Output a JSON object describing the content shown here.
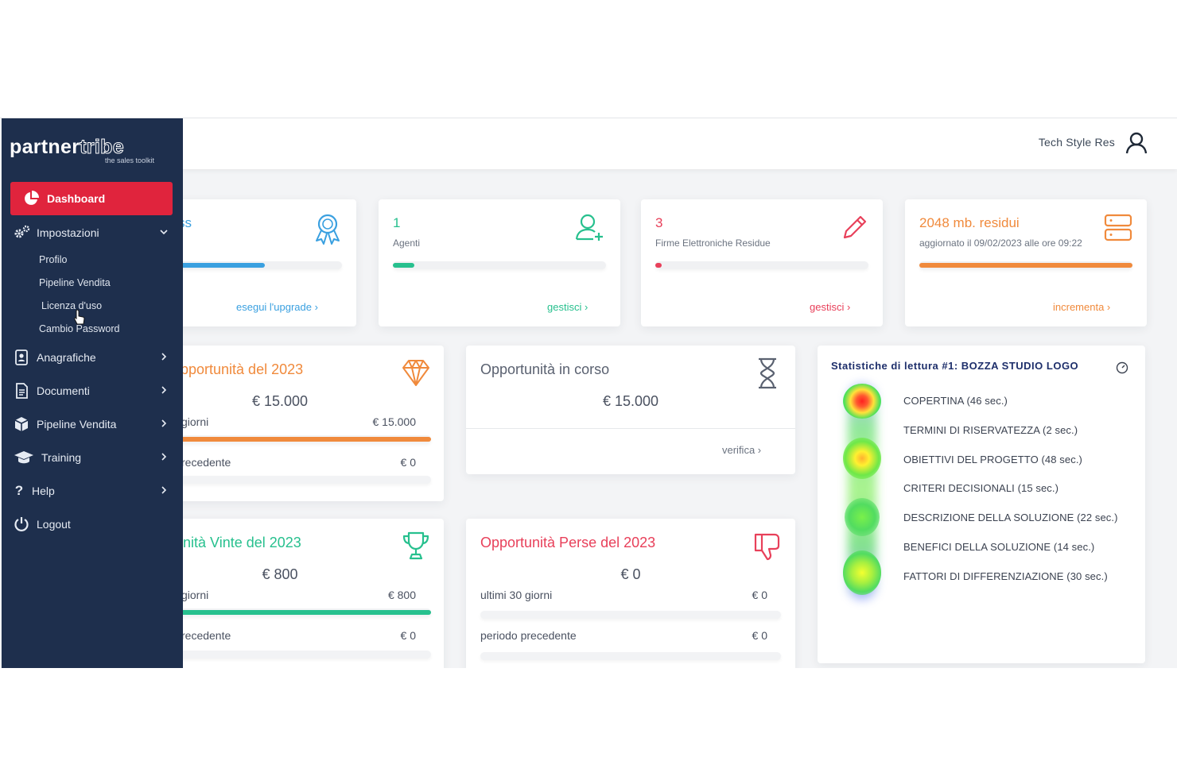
{
  "header": {
    "user_name": "Tech Style Res"
  },
  "sidebar": {
    "logo_main": "partner",
    "logo_accent": "tribe",
    "logo_tagline": "the sales toolkit",
    "dashboard": "Dashboard",
    "impostazioni": "Impostazioni",
    "sub_items": [
      "Profilo",
      "Pipeline Vendita",
      "Licenza d'uso",
      "Cambio Password"
    ],
    "anagrafiche": "Anagrafiche",
    "documenti": "Documenti",
    "pipeline": "Pipeline Vendita",
    "training": "Training",
    "help": "Help",
    "logout": "Logout"
  },
  "kpis": {
    "license": {
      "title": "ss",
      "link": "esegui l'upgrade ›",
      "progress": 0.58
    },
    "agents": {
      "value": "1",
      "label": "Agenti",
      "link": "gestisci ›",
      "progress": 0.1
    },
    "signatures": {
      "value": "3",
      "label": "Firme Elettroniche Residue",
      "link": "gestisci ›",
      "progress": 0.03
    },
    "storage": {
      "value": "2048 mb. residui",
      "label": "aggiornato il 09/02/2023 alle ore 09:22",
      "link": "incrementa ›",
      "progress": 1.0
    }
  },
  "opp_total": {
    "title": "pportunità del 2023",
    "amount": "€ 15.000",
    "row1_label": "giorni",
    "row1_value": "€ 15.000",
    "row2_label": "recedente",
    "row2_value": "€ 0",
    "progress": 1.0
  },
  "opp_current": {
    "title": "Opportunità in corso",
    "amount": "€ 15.000",
    "link": "verifica ›"
  },
  "opp_won": {
    "title": "nità Vinte del 2023",
    "amount": "€ 800",
    "row1_label": "giorni",
    "row1_value": "€ 800",
    "row2_label": "recedente",
    "row2_value": "€ 0",
    "progress": 1.0
  },
  "opp_lost": {
    "title": "Opportunità Perse del 2023",
    "amount": "€ 0",
    "row1_label": "ultimi 30 giorni",
    "row1_value": "€ 0",
    "row2_label": "periodo precedente",
    "row2_value": "€ 0",
    "progress": 0
  },
  "reading_stats": {
    "title": "Statistiche di lettura #1: BOZZA STUDIO LOGO",
    "items": [
      {
        "label": "COPERTINA (46 sec.)",
        "seconds": 46
      },
      {
        "label": "TERMINI DI RISERVATEZZA (2 sec.)",
        "seconds": 2
      },
      {
        "label": "OBIETTIVI DEL PROGETTO (48 sec.)",
        "seconds": 48
      },
      {
        "label": "CRITERI DECISIONALI (15 sec.)",
        "seconds": 15
      },
      {
        "label": "DESCRIZIONE DELLA SOLUZIONE (22 sec.)",
        "seconds": 22
      },
      {
        "label": "BENEFICI DELLA SOLUZIONE (14 sec.)",
        "seconds": 14
      },
      {
        "label": "FATTORI DI DIFFERENZIAZIONE (30 sec.)",
        "seconds": 30
      }
    ]
  },
  "colors": {
    "sidebar": "#1e2f4d",
    "accent_red": "#e0243d",
    "blue": "#3aa0e0",
    "green": "#27c08e",
    "red": "#e8405a",
    "orange": "#f08a3c"
  }
}
